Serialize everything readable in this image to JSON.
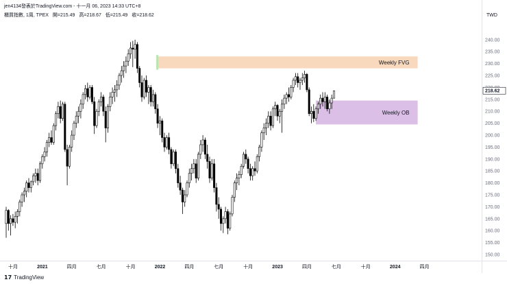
{
  "header": {
    "publish_text": "jen4134發表於TradingView.com - 十一月 06, 2023 14:33 UTC+8",
    "symbol": "櫃買指數, 1周, TPEX",
    "open": "開=215.49",
    "high": "高=218.67",
    "low": "低=215.49",
    "close": "收=218.62"
  },
  "currency_label": "TWD",
  "footer": {
    "logo_text": "TradingView",
    "logo_mark": "17"
  },
  "colors": {
    "up_candle": "#ffffff",
    "down_candle": "#000000",
    "candle_border": "#000000",
    "fvg_zone": "#f9d9bd",
    "ob_zone": "#dcbfe6",
    "green_highlight": "#b9e6b0",
    "price_label_bg": "#ffffff"
  },
  "chart_data": {
    "type": "candlestick",
    "timeframe": "weekly",
    "ylim": [
      148,
      248
    ],
    "yticks": [
      150,
      155,
      160,
      165,
      170,
      175,
      180,
      185,
      190,
      195,
      200,
      205,
      210,
      215,
      220,
      225,
      230,
      235,
      240
    ],
    "last_price": 218.62,
    "x_tick_labels": [
      "十月",
      "2021",
      "四月",
      "七月",
      "十月",
      "2022",
      "四月",
      "七月",
      "十月",
      "2023",
      "四月",
      "七月",
      "十月",
      "2024",
      "四月"
    ],
    "x_tick_weeks": [
      0,
      13,
      26,
      39,
      52,
      65,
      78,
      91,
      104,
      117,
      130,
      143,
      156,
      169,
      182
    ],
    "zones": [
      {
        "label": "Weekly FVG",
        "low": 228.0,
        "high": 233.0,
        "start_week": 67,
        "end_week": 182
      },
      {
        "label": "Weekly OB",
        "low": 204.5,
        "high": 214.5,
        "start_week": 137,
        "end_week": 182
      }
    ],
    "series": [
      {
        "o": 163.0,
        "h": 170.0,
        "l": 157.0,
        "c": 168.5
      },
      {
        "o": 168.5,
        "h": 169.0,
        "l": 160.0,
        "c": 163.0
      },
      {
        "o": 163.0,
        "h": 166.5,
        "l": 158.0,
        "c": 165.0
      },
      {
        "o": 165.0,
        "h": 167.0,
        "l": 162.0,
        "c": 163.5
      },
      {
        "o": 163.5,
        "h": 168.0,
        "l": 161.0,
        "c": 166.0
      },
      {
        "o": 166.0,
        "h": 169.0,
        "l": 163.0,
        "c": 168.0
      },
      {
        "o": 168.0,
        "h": 173.0,
        "l": 166.0,
        "c": 172.0
      },
      {
        "o": 172.0,
        "h": 176.0,
        "l": 170.0,
        "c": 175.0
      },
      {
        "o": 175.0,
        "h": 178.0,
        "l": 172.0,
        "c": 176.5
      },
      {
        "o": 176.5,
        "h": 181.0,
        "l": 174.0,
        "c": 180.0
      },
      {
        "o": 180.0,
        "h": 182.0,
        "l": 176.0,
        "c": 178.0
      },
      {
        "o": 178.0,
        "h": 181.0,
        "l": 176.0,
        "c": 180.5
      },
      {
        "o": 180.5,
        "h": 184.0,
        "l": 179.0,
        "c": 183.0
      },
      {
        "o": 183.0,
        "h": 186.0,
        "l": 180.0,
        "c": 184.0
      },
      {
        "o": 184.0,
        "h": 186.0,
        "l": 179.0,
        "c": 181.0
      },
      {
        "o": 181.0,
        "h": 189.0,
        "l": 180.0,
        "c": 188.0
      },
      {
        "o": 188.0,
        "h": 192.0,
        "l": 186.0,
        "c": 191.0
      },
      {
        "o": 191.0,
        "h": 195.0,
        "l": 189.0,
        "c": 193.0
      },
      {
        "o": 193.0,
        "h": 198.0,
        "l": 191.0,
        "c": 197.0
      },
      {
        "o": 197.0,
        "h": 201.0,
        "l": 195.0,
        "c": 199.0
      },
      {
        "o": 199.0,
        "h": 202.0,
        "l": 196.0,
        "c": 197.0
      },
      {
        "o": 197.0,
        "h": 205.0,
        "l": 196.0,
        "c": 204.0
      },
      {
        "o": 204.0,
        "h": 210.0,
        "l": 202.0,
        "c": 209.0
      },
      {
        "o": 209.0,
        "h": 214.0,
        "l": 207.0,
        "c": 212.0
      },
      {
        "o": 212.0,
        "h": 214.5,
        "l": 205.0,
        "c": 207.0
      },
      {
        "o": 207.0,
        "h": 214.0,
        "l": 206.0,
        "c": 213.0
      },
      {
        "o": 213.0,
        "h": 214.0,
        "l": 193.0,
        "c": 194.0
      },
      {
        "o": 194.0,
        "h": 196.0,
        "l": 179.0,
        "c": 187.0
      },
      {
        "o": 187.0,
        "h": 196.0,
        "l": 186.0,
        "c": 195.0
      },
      {
        "o": 195.0,
        "h": 202.0,
        "l": 193.0,
        "c": 200.0
      },
      {
        "o": 200.0,
        "h": 206.0,
        "l": 198.0,
        "c": 205.0
      },
      {
        "o": 205.0,
        "h": 210.0,
        "l": 203.0,
        "c": 208.0
      },
      {
        "o": 208.0,
        "h": 212.0,
        "l": 205.0,
        "c": 210.0
      },
      {
        "o": 210.0,
        "h": 215.0,
        "l": 207.0,
        "c": 213.0
      },
      {
        "o": 213.0,
        "h": 218.0,
        "l": 211.0,
        "c": 217.0
      },
      {
        "o": 217.0,
        "h": 221.0,
        "l": 215.0,
        "c": 219.5
      },
      {
        "o": 219.5,
        "h": 222.0,
        "l": 214.0,
        "c": 216.0
      },
      {
        "o": 216.0,
        "h": 221.0,
        "l": 215.0,
        "c": 220.0
      },
      {
        "o": 220.0,
        "h": 221.0,
        "l": 213.0,
        "c": 214.0
      },
      {
        "o": 214.0,
        "h": 216.0,
        "l": 200.5,
        "c": 204.0
      },
      {
        "o": 204.0,
        "h": 211.0,
        "l": 203.0,
        "c": 210.0
      },
      {
        "o": 210.0,
        "h": 215.0,
        "l": 208.0,
        "c": 214.0
      },
      {
        "o": 214.0,
        "h": 218.0,
        "l": 212.0,
        "c": 216.0
      },
      {
        "o": 216.0,
        "h": 217.0,
        "l": 208.0,
        "c": 210.0
      },
      {
        "o": 210.0,
        "h": 212.0,
        "l": 197.0,
        "c": 203.0
      },
      {
        "o": 203.0,
        "h": 213.0,
        "l": 201.0,
        "c": 212.0
      },
      {
        "o": 212.0,
        "h": 218.0,
        "l": 210.0,
        "c": 216.0
      },
      {
        "o": 216.0,
        "h": 220.0,
        "l": 213.0,
        "c": 218.0
      },
      {
        "o": 218.0,
        "h": 221.0,
        "l": 214.0,
        "c": 219.0
      },
      {
        "o": 219.0,
        "h": 223.0,
        "l": 216.0,
        "c": 221.0
      },
      {
        "o": 221.0,
        "h": 226.0,
        "l": 219.0,
        "c": 225.0
      },
      {
        "o": 225.0,
        "h": 229.0,
        "l": 222.0,
        "c": 227.0
      },
      {
        "o": 227.0,
        "h": 231.0,
        "l": 224.0,
        "c": 229.0
      },
      {
        "o": 229.0,
        "h": 233.0,
        "l": 226.0,
        "c": 231.0
      },
      {
        "o": 231.0,
        "h": 236.0,
        "l": 229.0,
        "c": 234.0
      },
      {
        "o": 234.0,
        "h": 239.0,
        "l": 232.0,
        "c": 236.5
      },
      {
        "o": 236.5,
        "h": 239.5,
        "l": 228.5,
        "c": 236.0
      },
      {
        "o": 236.0,
        "h": 240.0,
        "l": 232.0,
        "c": 238.0
      },
      {
        "o": 238.0,
        "h": 239.0,
        "l": 226.0,
        "c": 228.0
      },
      {
        "o": 228.0,
        "h": 229.0,
        "l": 220.0,
        "c": 222.0
      },
      {
        "o": 222.0,
        "h": 225.0,
        "l": 214.0,
        "c": 216.0
      },
      {
        "o": 216.0,
        "h": 224.0,
        "l": 215.0,
        "c": 223.0
      },
      {
        "o": 223.0,
        "h": 225.0,
        "l": 216.0,
        "c": 218.0
      },
      {
        "o": 218.0,
        "h": 221.0,
        "l": 213.0,
        "c": 220.0
      },
      {
        "o": 220.0,
        "h": 221.0,
        "l": 212.0,
        "c": 214.0
      },
      {
        "o": 214.0,
        "h": 219.0,
        "l": 212.0,
        "c": 217.0
      },
      {
        "o": 217.0,
        "h": 218.0,
        "l": 209.0,
        "c": 211.0
      },
      {
        "o": 211.0,
        "h": 213.0,
        "l": 203.0,
        "c": 205.0
      },
      {
        "o": 205.0,
        "h": 208.0,
        "l": 200.0,
        "c": 206.0
      },
      {
        "o": 206.0,
        "h": 207.0,
        "l": 197.0,
        "c": 199.0
      },
      {
        "o": 199.0,
        "h": 201.0,
        "l": 193.0,
        "c": 195.0
      },
      {
        "o": 195.0,
        "h": 200.0,
        "l": 194.0,
        "c": 199.0
      },
      {
        "o": 199.0,
        "h": 201.0,
        "l": 192.0,
        "c": 194.0
      },
      {
        "o": 194.0,
        "h": 195.0,
        "l": 186.0,
        "c": 188.0
      },
      {
        "o": 188.0,
        "h": 194.0,
        "l": 187.0,
        "c": 193.0
      },
      {
        "o": 193.0,
        "h": 194.0,
        "l": 184.0,
        "c": 186.0
      },
      {
        "o": 186.0,
        "h": 188.0,
        "l": 178.0,
        "c": 180.0
      },
      {
        "o": 180.0,
        "h": 183.0,
        "l": 175.0,
        "c": 177.0
      },
      {
        "o": 177.0,
        "h": 178.0,
        "l": 167.0,
        "c": 172.0
      },
      {
        "o": 172.0,
        "h": 177.0,
        "l": 170.0,
        "c": 175.0
      },
      {
        "o": 175.0,
        "h": 181.0,
        "l": 174.0,
        "c": 180.0
      },
      {
        "o": 180.0,
        "h": 186.0,
        "l": 178.0,
        "c": 184.0
      },
      {
        "o": 184.0,
        "h": 188.0,
        "l": 181.0,
        "c": 186.0
      },
      {
        "o": 186.0,
        "h": 190.0,
        "l": 184.0,
        "c": 188.0
      },
      {
        "o": 188.0,
        "h": 190.0,
        "l": 180.0,
        "c": 182.0
      },
      {
        "o": 182.0,
        "h": 193.0,
        "l": 181.0,
        "c": 192.0
      },
      {
        "o": 192.0,
        "h": 198.0,
        "l": 190.0,
        "c": 196.0
      },
      {
        "o": 196.0,
        "h": 200.0,
        "l": 193.0,
        "c": 198.0
      },
      {
        "o": 198.0,
        "h": 199.0,
        "l": 190.0,
        "c": 192.0
      },
      {
        "o": 192.0,
        "h": 196.0,
        "l": 186.0,
        "c": 189.0
      },
      {
        "o": 189.0,
        "h": 191.0,
        "l": 180.0,
        "c": 182.0
      },
      {
        "o": 182.0,
        "h": 190.0,
        "l": 181.0,
        "c": 188.0
      },
      {
        "o": 188.0,
        "h": 190.0,
        "l": 176.0,
        "c": 178.0
      },
      {
        "o": 178.0,
        "h": 180.0,
        "l": 168.0,
        "c": 171.0
      },
      {
        "o": 171.0,
        "h": 174.0,
        "l": 165.0,
        "c": 169.0
      },
      {
        "o": 169.0,
        "h": 170.0,
        "l": 160.0,
        "c": 163.0
      },
      {
        "o": 163.0,
        "h": 166.0,
        "l": 159.0,
        "c": 165.0
      },
      {
        "o": 165.0,
        "h": 170.0,
        "l": 163.0,
        "c": 168.0
      },
      {
        "o": 168.0,
        "h": 169.0,
        "l": 158.5,
        "c": 161.0
      },
      {
        "o": 161.0,
        "h": 168.0,
        "l": 160.0,
        "c": 167.0
      },
      {
        "o": 167.0,
        "h": 175.0,
        "l": 166.0,
        "c": 174.0
      },
      {
        "o": 174.0,
        "h": 181.0,
        "l": 172.0,
        "c": 180.0
      },
      {
        "o": 180.0,
        "h": 184.0,
        "l": 177.0,
        "c": 182.0
      },
      {
        "o": 182.0,
        "h": 185.0,
        "l": 179.0,
        "c": 183.5
      },
      {
        "o": 183.5,
        "h": 188.0,
        "l": 182.0,
        "c": 187.0
      },
      {
        "o": 187.0,
        "h": 193.0,
        "l": 186.0,
        "c": 192.0
      },
      {
        "o": 192.0,
        "h": 194.0,
        "l": 188.0,
        "c": 190.0
      },
      {
        "o": 190.0,
        "h": 191.0,
        "l": 184.0,
        "c": 186.0
      },
      {
        "o": 186.0,
        "h": 188.0,
        "l": 181.0,
        "c": 183.0
      },
      {
        "o": 183.0,
        "h": 187.0,
        "l": 181.0,
        "c": 186.0
      },
      {
        "o": 186.0,
        "h": 189.0,
        "l": 183.0,
        "c": 185.0
      },
      {
        "o": 185.0,
        "h": 192.0,
        "l": 184.0,
        "c": 191.0
      },
      {
        "o": 191.0,
        "h": 196.0,
        "l": 189.0,
        "c": 195.0
      },
      {
        "o": 195.0,
        "h": 202.0,
        "l": 193.0,
        "c": 201.0
      },
      {
        "o": 201.0,
        "h": 205.0,
        "l": 198.0,
        "c": 203.0
      },
      {
        "o": 203.0,
        "h": 207.0,
        "l": 200.0,
        "c": 205.0
      },
      {
        "o": 205.0,
        "h": 210.0,
        "l": 203.0,
        "c": 208.0
      },
      {
        "o": 208.0,
        "h": 210.0,
        "l": 202.0,
        "c": 204.0
      },
      {
        "o": 204.0,
        "h": 212.0,
        "l": 203.0,
        "c": 211.0
      },
      {
        "o": 211.0,
        "h": 214.0,
        "l": 208.0,
        "c": 212.5
      },
      {
        "o": 212.5,
        "h": 213.0,
        "l": 206.0,
        "c": 208.0
      },
      {
        "o": 208.0,
        "h": 211.0,
        "l": 205.0,
        "c": 210.0
      },
      {
        "o": 210.0,
        "h": 215.0,
        "l": 201.0,
        "c": 213.0
      },
      {
        "o": 213.0,
        "h": 217.0,
        "l": 211.0,
        "c": 215.5
      },
      {
        "o": 215.5,
        "h": 218.0,
        "l": 213.0,
        "c": 217.0
      },
      {
        "o": 217.0,
        "h": 220.0,
        "l": 214.0,
        "c": 216.0
      },
      {
        "o": 216.0,
        "h": 221.0,
        "l": 215.0,
        "c": 220.0
      },
      {
        "o": 220.0,
        "h": 224.0,
        "l": 218.0,
        "c": 223.0
      },
      {
        "o": 223.0,
        "h": 226.0,
        "l": 221.0,
        "c": 224.5
      },
      {
        "o": 224.5,
        "h": 226.0,
        "l": 220.0,
        "c": 222.0
      },
      {
        "o": 222.0,
        "h": 224.0,
        "l": 219.0,
        "c": 223.0
      },
      {
        "o": 223.0,
        "h": 226.0,
        "l": 221.0,
        "c": 224.0
      },
      {
        "o": 224.0,
        "h": 227.0,
        "l": 222.0,
        "c": 225.5
      },
      {
        "o": 225.5,
        "h": 226.0,
        "l": 218.0,
        "c": 219.0
      },
      {
        "o": 219.0,
        "h": 220.0,
        "l": 208.0,
        "c": 209.0
      },
      {
        "o": 209.0,
        "h": 212.0,
        "l": 205.0,
        "c": 210.0
      },
      {
        "o": 210.0,
        "h": 213.0,
        "l": 205.5,
        "c": 207.0
      },
      {
        "o": 207.0,
        "h": 212.0,
        "l": 206.0,
        "c": 211.0
      },
      {
        "o": 211.0,
        "h": 214.0,
        "l": 209.0,
        "c": 213.0
      },
      {
        "o": 213.0,
        "h": 217.0,
        "l": 211.0,
        "c": 215.5
      },
      {
        "o": 215.5,
        "h": 218.0,
        "l": 212.0,
        "c": 214.0
      },
      {
        "o": 214.0,
        "h": 218.0,
        "l": 211.0,
        "c": 216.0
      },
      {
        "o": 216.0,
        "h": 217.0,
        "l": 210.0,
        "c": 211.0
      },
      {
        "o": 211.0,
        "h": 215.0,
        "l": 209.0,
        "c": 213.5
      },
      {
        "o": 213.5,
        "h": 217.0,
        "l": 211.0,
        "c": 215.49
      },
      {
        "o": 215.49,
        "h": 218.67,
        "l": 215.49,
        "c": 218.62
      }
    ]
  }
}
